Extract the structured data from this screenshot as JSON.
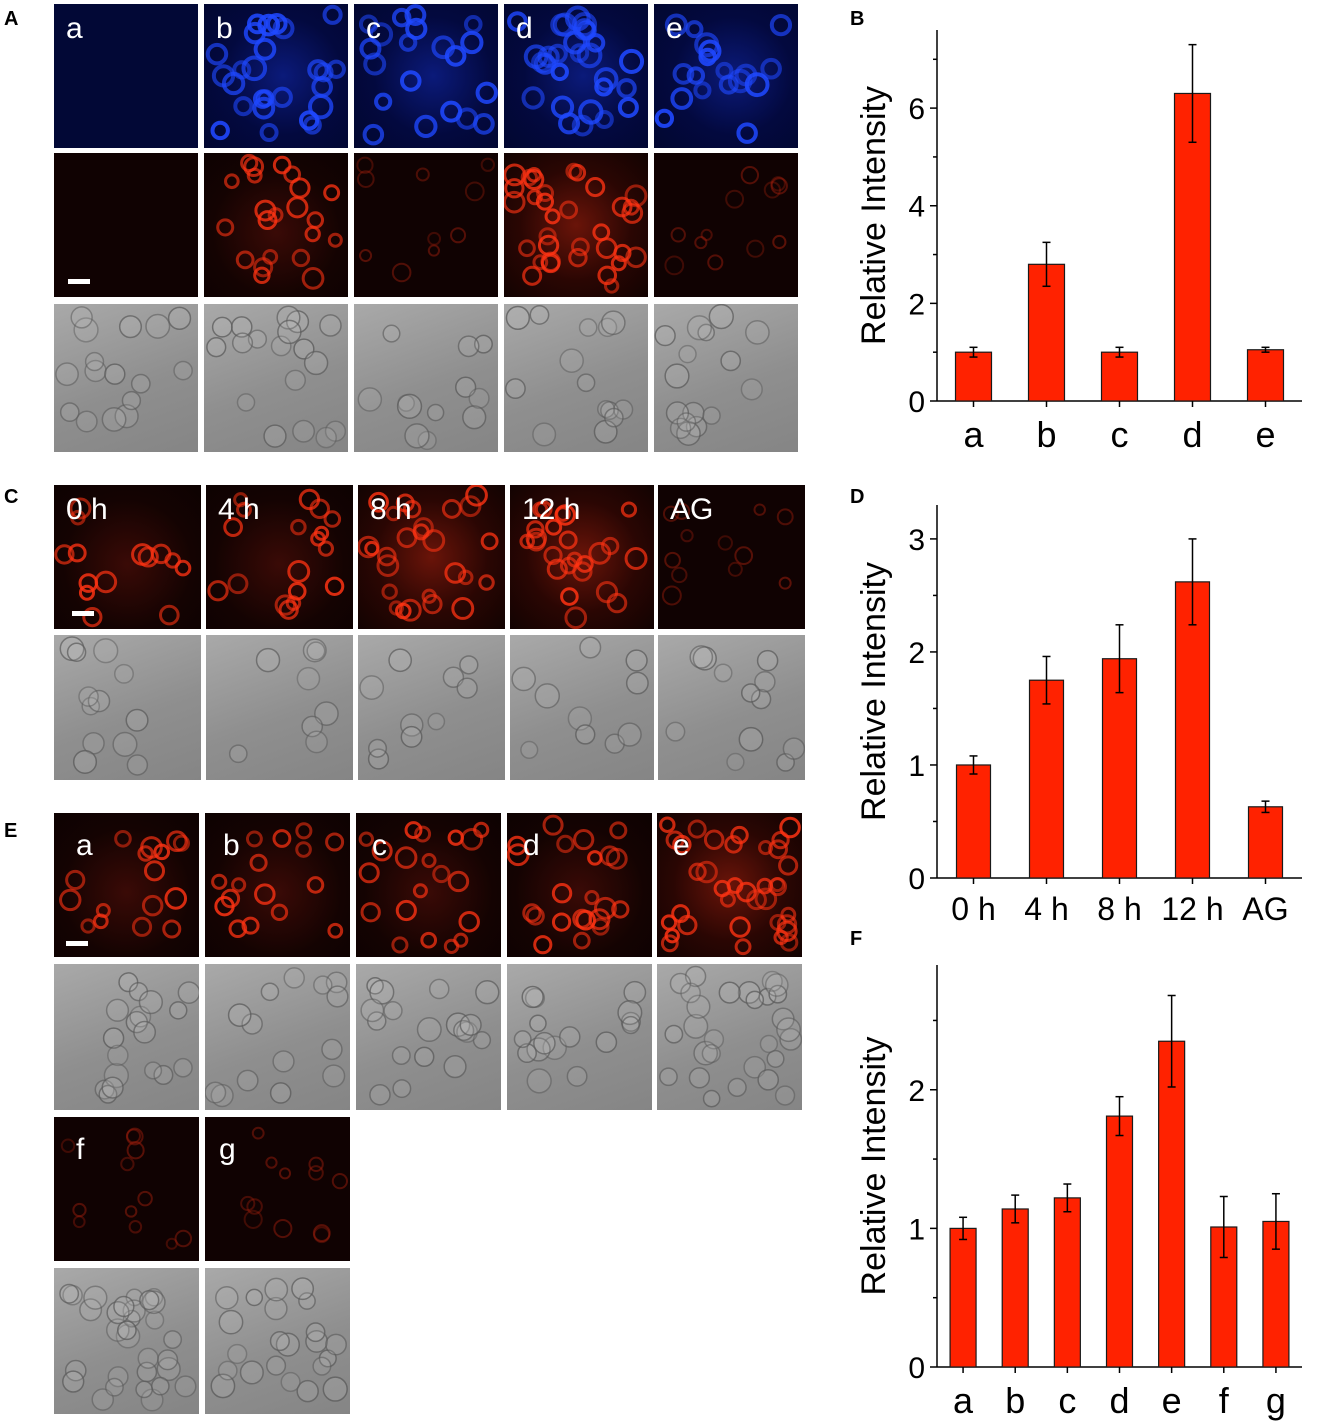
{
  "panel_letters": {
    "A": "A",
    "B": "B",
    "C": "C",
    "D": "D",
    "E": "E",
    "F": "F"
  },
  "panelA": {
    "labels": [
      "a",
      "b",
      "c",
      "d",
      "e"
    ]
  },
  "panelC": {
    "labels": [
      "0 h",
      "4 h",
      "8 h",
      "12 h",
      "AG"
    ]
  },
  "panelE": {
    "labels": [
      "a",
      "b",
      "c",
      "d",
      "e",
      "f",
      "g"
    ]
  },
  "colors": {
    "bar": "#ff2200",
    "bar_stroke": "#1a1a1a",
    "blue_cells": "#1f48ff",
    "red_cells": "#ff3313"
  },
  "chart_data": [
    {
      "type": "bar",
      "panel": "B",
      "categories": [
        "a",
        "b",
        "c",
        "d",
        "e"
      ],
      "values": [
        1.0,
        2.8,
        1.0,
        6.3,
        1.05
      ],
      "errors": [
        0.1,
        0.45,
        0.1,
        1.0,
        0.05
      ],
      "ylabel": "Relative Intensity",
      "ylim": [
        0,
        7.6
      ],
      "yticks": [
        0,
        2,
        4,
        6
      ],
      "grid": false
    },
    {
      "type": "bar",
      "panel": "D",
      "categories": [
        "0 h",
        "4 h",
        "8 h",
        "12 h",
        "AG"
      ],
      "values": [
        1.0,
        1.75,
        1.94,
        2.62,
        0.63
      ],
      "errors": [
        0.08,
        0.21,
        0.3,
        0.38,
        0.05
      ],
      "ylabel": "Relative Intensity",
      "ylim": [
        0,
        3.3
      ],
      "yticks": [
        0,
        1,
        2,
        3
      ],
      "grid": false
    },
    {
      "type": "bar",
      "panel": "F",
      "categories": [
        "a",
        "b",
        "c",
        "d",
        "e",
        "f",
        "g"
      ],
      "values": [
        1.0,
        1.14,
        1.22,
        1.81,
        2.35,
        1.01,
        1.05
      ],
      "errors": [
        0.08,
        0.1,
        0.1,
        0.14,
        0.33,
        0.22,
        0.2
      ],
      "ylabel": "Relative Intensity",
      "ylim": [
        0,
        2.9
      ],
      "yticks": [
        0,
        1,
        2
      ],
      "grid": false
    }
  ]
}
